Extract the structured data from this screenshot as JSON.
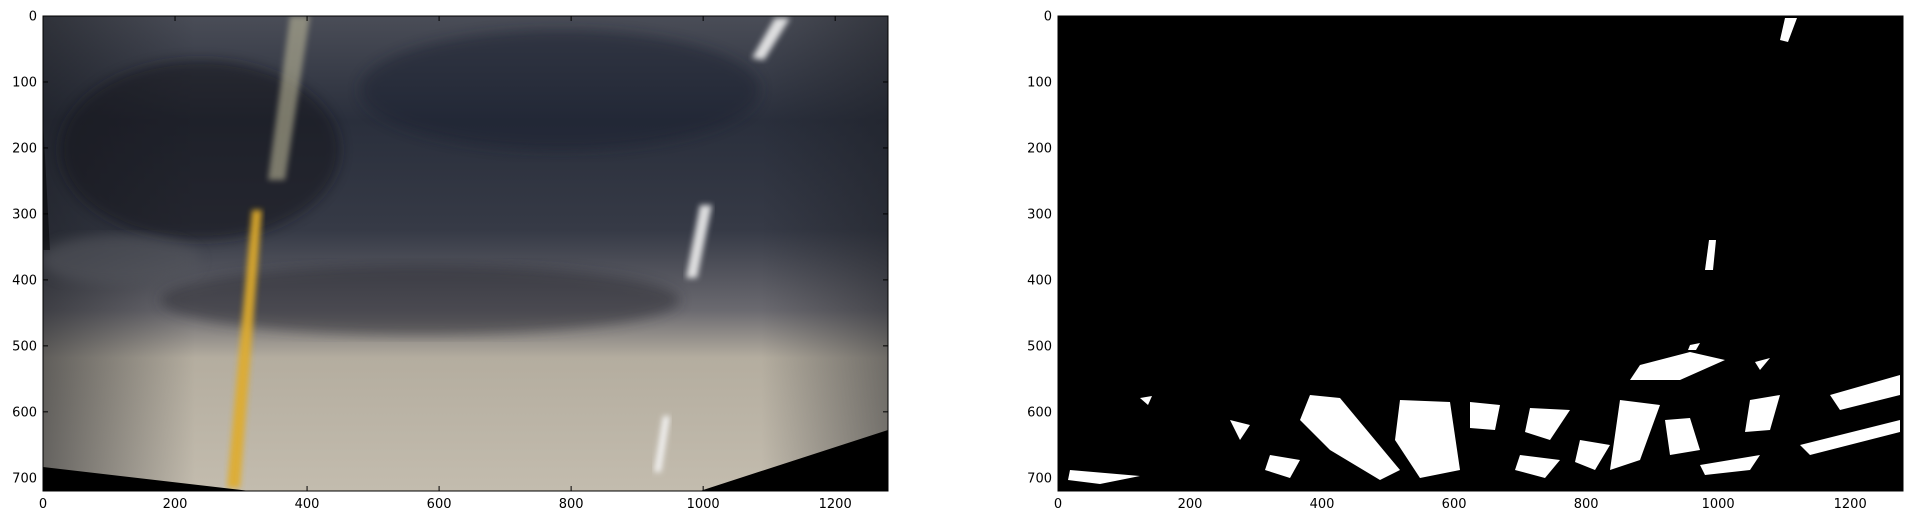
{
  "figure": {
    "panels": [
      {
        "name": "bird-eye-color",
        "image": "warped-road-color",
        "x_ticks": [
          "0",
          "200",
          "400",
          "600",
          "800",
          "1000",
          "1200"
        ],
        "y_ticks": [
          "0",
          "100",
          "200",
          "300",
          "400",
          "500",
          "600",
          "700"
        ]
      },
      {
        "name": "bird-eye-binary",
        "image": "binary-lane-mask",
        "x_ticks": [
          "0",
          "200",
          "400",
          "600",
          "800",
          "1000",
          "1200"
        ],
        "y_ticks": [
          "0",
          "100",
          "200",
          "300",
          "400",
          "500",
          "600",
          "700"
        ]
      }
    ],
    "x_range": [
      0,
      1280
    ],
    "y_range": [
      0,
      720
    ],
    "colors": {
      "road_dark": "#2c3240",
      "road_light": "#bdb5a8",
      "lane_yellow": "#e0ac2a",
      "lane_white": "#f4f4f4",
      "mask_bg": "#000000",
      "mask_fg": "#ffffff"
    }
  }
}
